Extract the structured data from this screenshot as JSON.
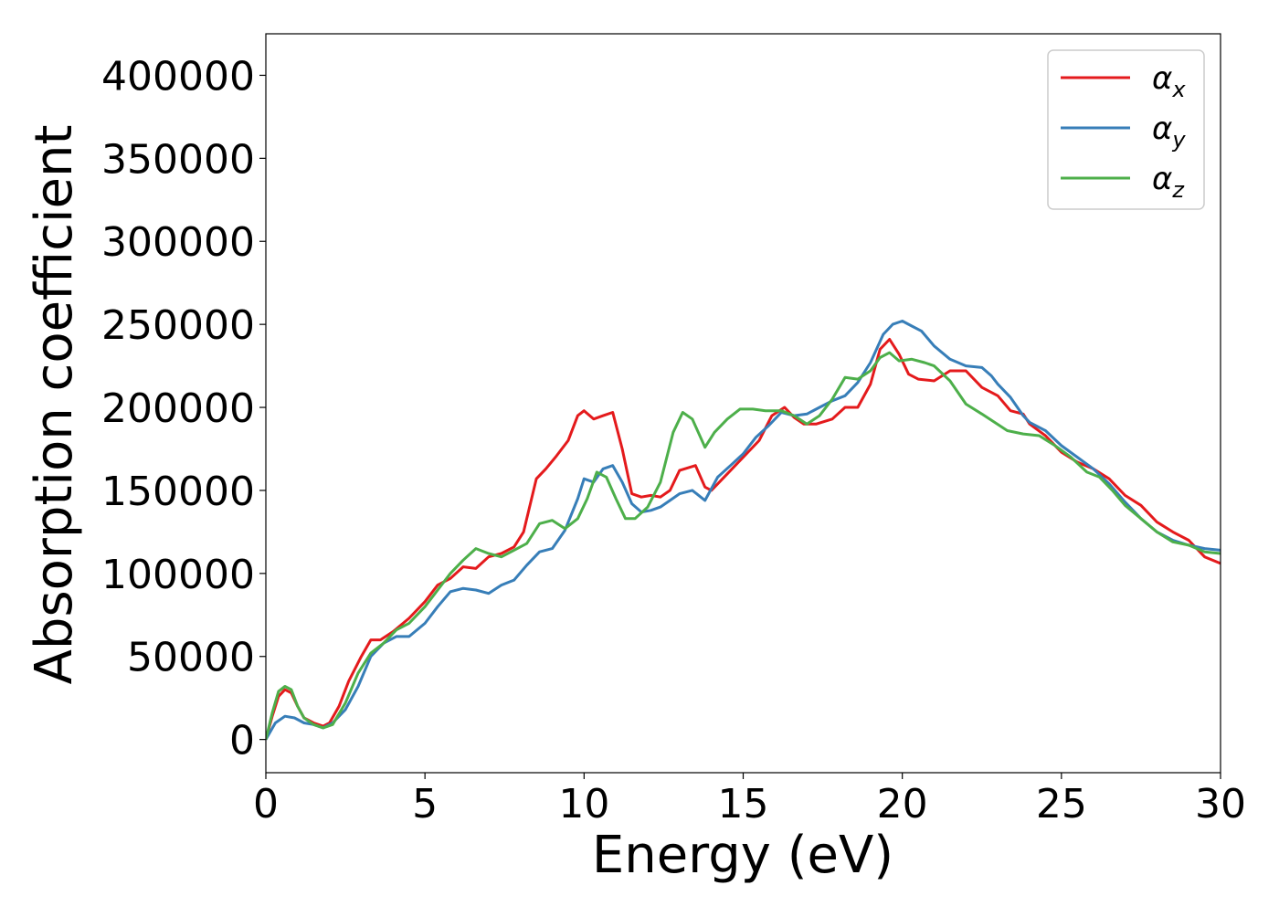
{
  "chart_data": {
    "type": "line",
    "xlabel": "Energy (eV)",
    "ylabel": "Absorption coefficient",
    "xlim": [
      0,
      30
    ],
    "ylim": [
      -20000,
      425000
    ],
    "x_ticks": [
      0,
      5,
      10,
      15,
      20,
      25,
      30
    ],
    "y_ticks": [
      0,
      50000,
      100000,
      150000,
      200000,
      250000,
      300000,
      350000,
      400000
    ],
    "grid": false,
    "legend_position": "top-right",
    "series": [
      {
        "name": "αx",
        "legend_base": "α",
        "legend_sub": "x",
        "color": "#e41a1c",
        "points": [
          [
            0,
            0
          ],
          [
            0.2,
            14000
          ],
          [
            0.4,
            26000
          ],
          [
            0.6,
            30000
          ],
          [
            0.8,
            28000
          ],
          [
            1.0,
            20000
          ],
          [
            1.2,
            13000
          ],
          [
            1.5,
            10000
          ],
          [
            1.8,
            8000
          ],
          [
            2.0,
            10000
          ],
          [
            2.3,
            20000
          ],
          [
            2.6,
            35000
          ],
          [
            3.0,
            50000
          ],
          [
            3.3,
            60000
          ],
          [
            3.6,
            60000
          ],
          [
            4.0,
            65000
          ],
          [
            4.5,
            73000
          ],
          [
            5.0,
            83000
          ],
          [
            5.4,
            93000
          ],
          [
            5.8,
            97000
          ],
          [
            6.2,
            104000
          ],
          [
            6.6,
            103000
          ],
          [
            7.0,
            110000
          ],
          [
            7.4,
            112000
          ],
          [
            7.8,
            116000
          ],
          [
            8.1,
            125000
          ],
          [
            8.5,
            157000
          ],
          [
            8.8,
            163000
          ],
          [
            9.1,
            170000
          ],
          [
            9.5,
            180000
          ],
          [
            9.8,
            195000
          ],
          [
            10.0,
            198000
          ],
          [
            10.3,
            193000
          ],
          [
            10.6,
            195000
          ],
          [
            10.9,
            197000
          ],
          [
            11.2,
            175000
          ],
          [
            11.5,
            148000
          ],
          [
            11.8,
            146000
          ],
          [
            12.1,
            147000
          ],
          [
            12.4,
            146000
          ],
          [
            12.7,
            150000
          ],
          [
            13.0,
            162000
          ],
          [
            13.5,
            165000
          ],
          [
            13.8,
            152000
          ],
          [
            14.0,
            150000
          ],
          [
            14.5,
            160000
          ],
          [
            15.0,
            170000
          ],
          [
            15.5,
            180000
          ],
          [
            15.9,
            195000
          ],
          [
            16.3,
            200000
          ],
          [
            16.6,
            194000
          ],
          [
            16.9,
            190000
          ],
          [
            17.3,
            190000
          ],
          [
            17.8,
            193000
          ],
          [
            18.2,
            200000
          ],
          [
            18.6,
            200000
          ],
          [
            19.0,
            214000
          ],
          [
            19.3,
            235000
          ],
          [
            19.6,
            241000
          ],
          [
            19.9,
            232000
          ],
          [
            20.2,
            220000
          ],
          [
            20.5,
            217000
          ],
          [
            21.0,
            216000
          ],
          [
            21.5,
            222000
          ],
          [
            22.0,
            222000
          ],
          [
            22.5,
            212000
          ],
          [
            23.0,
            207000
          ],
          [
            23.4,
            198000
          ],
          [
            23.8,
            196000
          ],
          [
            24.0,
            190000
          ],
          [
            24.5,
            183000
          ],
          [
            25.0,
            173000
          ],
          [
            25.5,
            167000
          ],
          [
            26.0,
            163000
          ],
          [
            26.5,
            157000
          ],
          [
            27.0,
            147000
          ],
          [
            27.5,
            141000
          ],
          [
            28.0,
            131000
          ],
          [
            28.5,
            125000
          ],
          [
            29.0,
            120000
          ],
          [
            29.5,
            110000
          ],
          [
            30,
            106000
          ]
        ]
      },
      {
        "name": "αy",
        "legend_base": "α",
        "legend_sub": "y",
        "color": "#377eb8",
        "points": [
          [
            0,
            0
          ],
          [
            0.3,
            10000
          ],
          [
            0.6,
            14000
          ],
          [
            0.9,
            13000
          ],
          [
            1.2,
            10000
          ],
          [
            1.5,
            9000
          ],
          [
            1.8,
            7000
          ],
          [
            2.1,
            10000
          ],
          [
            2.5,
            18000
          ],
          [
            2.9,
            32000
          ],
          [
            3.3,
            50000
          ],
          [
            3.7,
            58000
          ],
          [
            4.1,
            62000
          ],
          [
            4.5,
            62000
          ],
          [
            5.0,
            70000
          ],
          [
            5.4,
            80000
          ],
          [
            5.8,
            89000
          ],
          [
            6.2,
            91000
          ],
          [
            6.6,
            90000
          ],
          [
            7.0,
            88000
          ],
          [
            7.4,
            93000
          ],
          [
            7.8,
            96000
          ],
          [
            8.2,
            105000
          ],
          [
            8.6,
            113000
          ],
          [
            9.0,
            115000
          ],
          [
            9.4,
            126000
          ],
          [
            9.8,
            145000
          ],
          [
            10.0,
            157000
          ],
          [
            10.3,
            155000
          ],
          [
            10.6,
            163000
          ],
          [
            10.9,
            165000
          ],
          [
            11.2,
            155000
          ],
          [
            11.5,
            142000
          ],
          [
            11.8,
            137000
          ],
          [
            12.1,
            138000
          ],
          [
            12.4,
            140000
          ],
          [
            12.7,
            144000
          ],
          [
            13.0,
            148000
          ],
          [
            13.4,
            150000
          ],
          [
            13.8,
            144000
          ],
          [
            14.2,
            158000
          ],
          [
            14.6,
            165000
          ],
          [
            15.0,
            172000
          ],
          [
            15.4,
            182000
          ],
          [
            15.8,
            189000
          ],
          [
            16.2,
            197000
          ],
          [
            16.6,
            195000
          ],
          [
            17.0,
            196000
          ],
          [
            17.4,
            200000
          ],
          [
            17.8,
            204000
          ],
          [
            18.2,
            207000
          ],
          [
            18.6,
            215000
          ],
          [
            19.0,
            227000
          ],
          [
            19.4,
            244000
          ],
          [
            19.7,
            250000
          ],
          [
            20.0,
            252000
          ],
          [
            20.3,
            249000
          ],
          [
            20.6,
            246000
          ],
          [
            21.0,
            237000
          ],
          [
            21.5,
            229000
          ],
          [
            22.0,
            225000
          ],
          [
            22.5,
            224000
          ],
          [
            22.8,
            219000
          ],
          [
            23.0,
            214000
          ],
          [
            23.4,
            206000
          ],
          [
            23.8,
            195000
          ],
          [
            24.0,
            191000
          ],
          [
            24.5,
            186000
          ],
          [
            25.0,
            177000
          ],
          [
            25.5,
            170000
          ],
          [
            26.0,
            163000
          ],
          [
            26.5,
            154000
          ],
          [
            27.0,
            143000
          ],
          [
            27.5,
            133000
          ],
          [
            28.0,
            125000
          ],
          [
            28.5,
            120000
          ],
          [
            29.0,
            117000
          ],
          [
            29.5,
            115000
          ],
          [
            30,
            114000
          ]
        ]
      },
      {
        "name": "αz",
        "legend_base": "α",
        "legend_sub": "z",
        "color": "#4daf4a",
        "points": [
          [
            0,
            0
          ],
          [
            0.2,
            16000
          ],
          [
            0.4,
            29000
          ],
          [
            0.6,
            32000
          ],
          [
            0.8,
            30000
          ],
          [
            1.0,
            20000
          ],
          [
            1.2,
            13000
          ],
          [
            1.5,
            9000
          ],
          [
            1.8,
            7000
          ],
          [
            2.1,
            9000
          ],
          [
            2.5,
            22000
          ],
          [
            2.9,
            40000
          ],
          [
            3.3,
            52000
          ],
          [
            3.7,
            58000
          ],
          [
            4.1,
            66000
          ],
          [
            4.5,
            70000
          ],
          [
            5.0,
            80000
          ],
          [
            5.4,
            90000
          ],
          [
            5.8,
            100000
          ],
          [
            6.2,
            108000
          ],
          [
            6.6,
            115000
          ],
          [
            7.0,
            112000
          ],
          [
            7.4,
            110000
          ],
          [
            7.8,
            114000
          ],
          [
            8.2,
            118000
          ],
          [
            8.6,
            130000
          ],
          [
            9.0,
            132000
          ],
          [
            9.4,
            127000
          ],
          [
            9.8,
            133000
          ],
          [
            10.1,
            145000
          ],
          [
            10.4,
            161000
          ],
          [
            10.7,
            158000
          ],
          [
            11.0,
            145000
          ],
          [
            11.3,
            133000
          ],
          [
            11.6,
            133000
          ],
          [
            12.0,
            140000
          ],
          [
            12.4,
            155000
          ],
          [
            12.8,
            185000
          ],
          [
            13.1,
            197000
          ],
          [
            13.4,
            193000
          ],
          [
            13.8,
            176000
          ],
          [
            14.1,
            185000
          ],
          [
            14.5,
            193000
          ],
          [
            14.9,
            199000
          ],
          [
            15.3,
            199000
          ],
          [
            15.7,
            198000
          ],
          [
            16.2,
            198000
          ],
          [
            16.6,
            195000
          ],
          [
            17.0,
            190000
          ],
          [
            17.4,
            195000
          ],
          [
            17.8,
            205000
          ],
          [
            18.2,
            218000
          ],
          [
            18.6,
            217000
          ],
          [
            19.0,
            222000
          ],
          [
            19.3,
            230000
          ],
          [
            19.6,
            233000
          ],
          [
            19.9,
            228000
          ],
          [
            20.3,
            229000
          ],
          [
            20.7,
            227000
          ],
          [
            21.0,
            225000
          ],
          [
            21.5,
            216000
          ],
          [
            22.0,
            202000
          ],
          [
            22.5,
            196000
          ],
          [
            22.9,
            191000
          ],
          [
            23.3,
            186000
          ],
          [
            23.8,
            184000
          ],
          [
            24.3,
            183000
          ],
          [
            24.8,
            177000
          ],
          [
            25.3,
            170000
          ],
          [
            25.8,
            161000
          ],
          [
            26.2,
            158000
          ],
          [
            26.6,
            150000
          ],
          [
            27.0,
            141000
          ],
          [
            27.5,
            133000
          ],
          [
            28.0,
            125000
          ],
          [
            28.5,
            119000
          ],
          [
            29.0,
            117000
          ],
          [
            29.5,
            113000
          ],
          [
            30,
            112000
          ]
        ]
      }
    ]
  }
}
